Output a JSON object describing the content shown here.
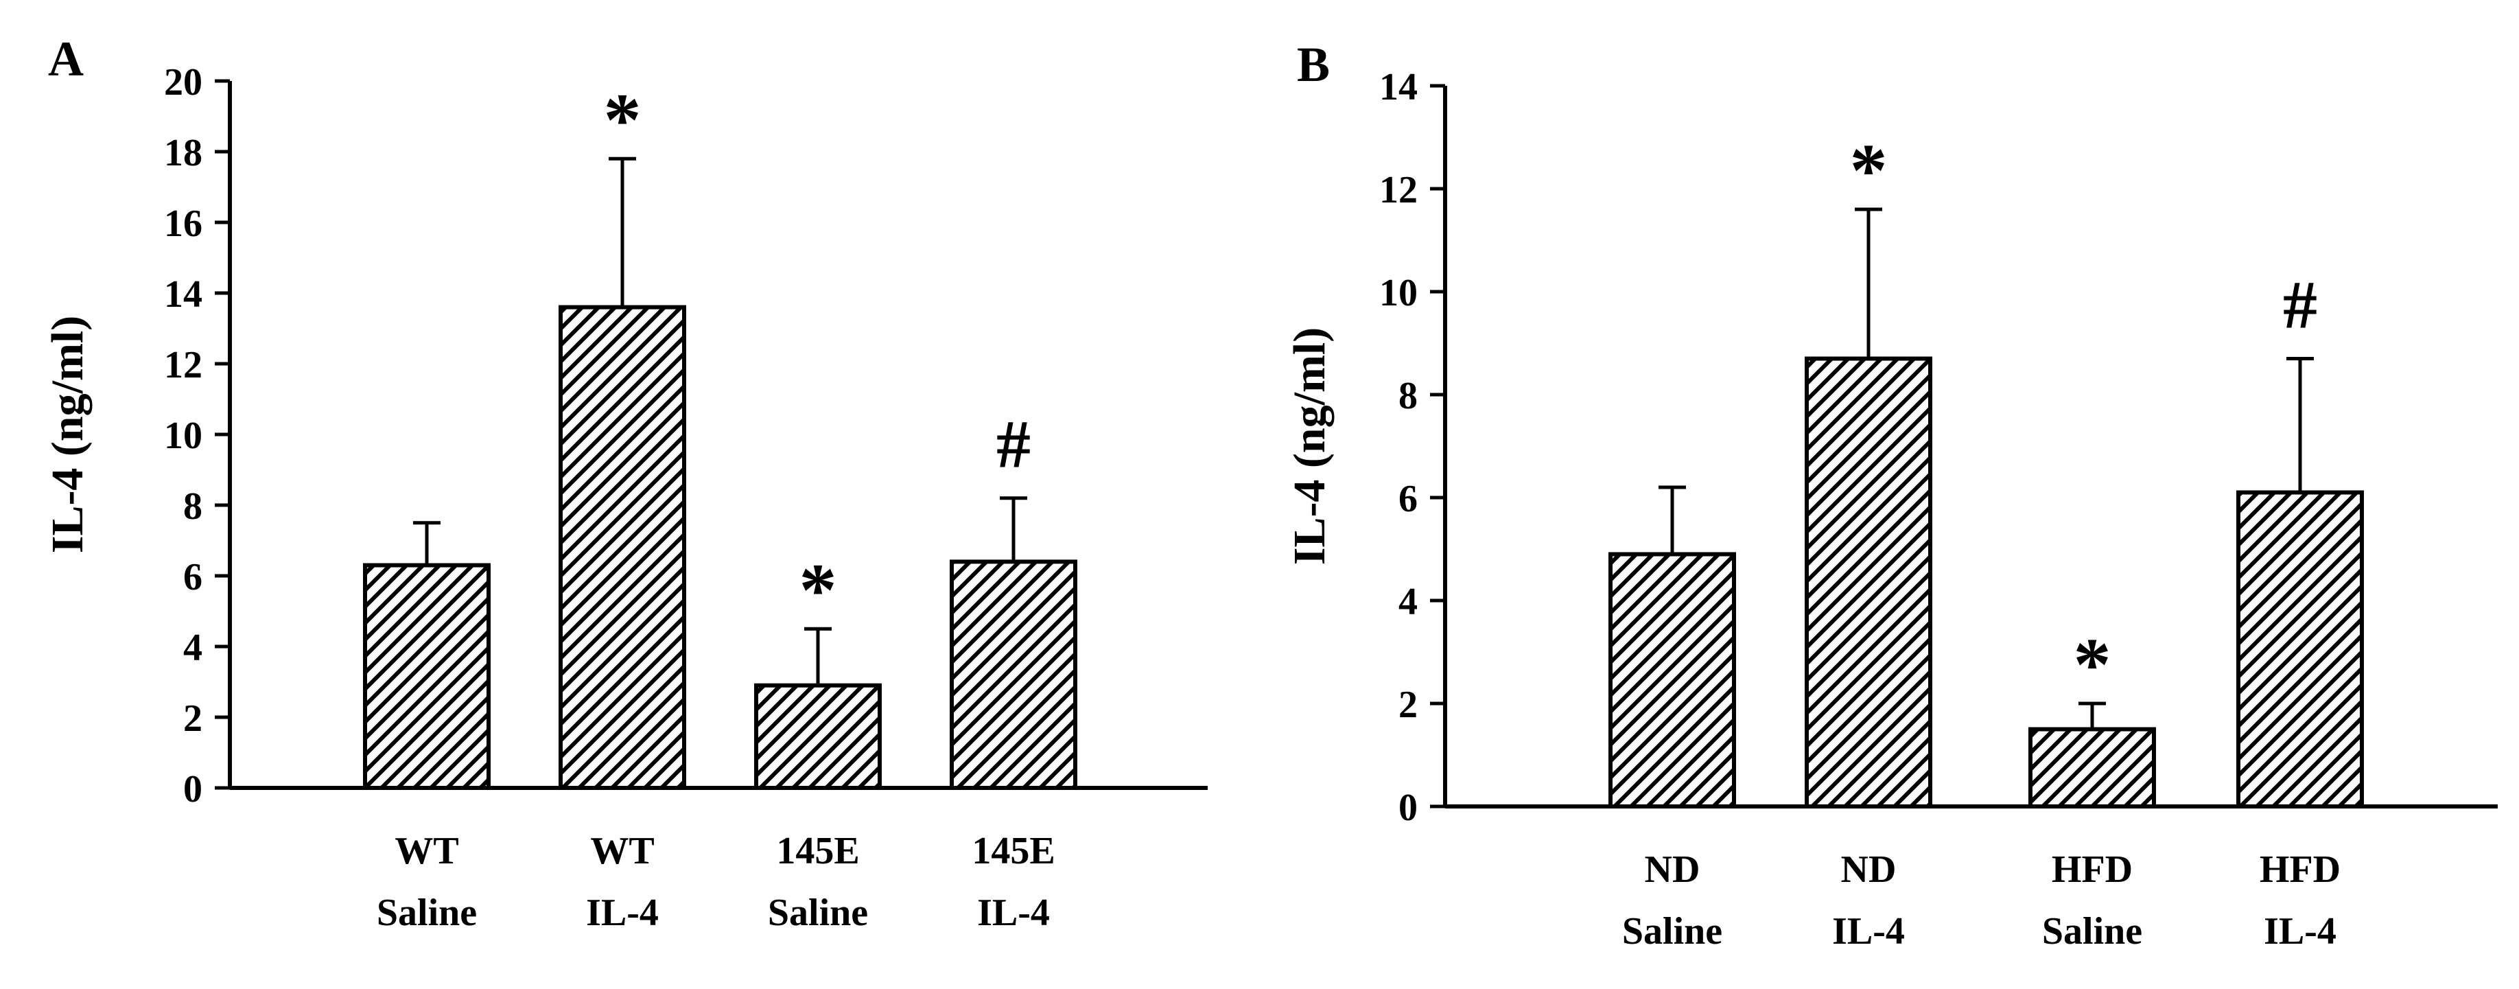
{
  "chart_data": [
    {
      "panel_label": "A",
      "type": "bar",
      "categories": [
        [
          "WT",
          "Saline"
        ],
        [
          "WT",
          "IL-4"
        ],
        [
          "145E",
          "Saline"
        ],
        [
          "145E",
          "IL-4"
        ]
      ],
      "values": [
        6.3,
        13.6,
        2.9,
        6.4
      ],
      "errors": [
        1.2,
        4.2,
        1.6,
        1.8
      ],
      "annotations": [
        "",
        "*",
        "*",
        "#"
      ],
      "ylabel": "IL-4 (ng/ml)",
      "ylim": [
        0,
        20
      ],
      "yticks": [
        0,
        2,
        4,
        6,
        8,
        10,
        12,
        14,
        16,
        18,
        20
      ],
      "bar_fill": "diagonal-hatch",
      "grid": false
    },
    {
      "panel_label": "B",
      "type": "bar",
      "categories": [
        [
          "ND",
          "Saline"
        ],
        [
          "ND",
          "IL-4"
        ],
        [
          "HFD",
          "Saline"
        ],
        [
          "HFD",
          "IL-4"
        ]
      ],
      "values": [
        4.9,
        8.7,
        1.5,
        6.1
      ],
      "errors": [
        1.3,
        2.9,
        0.5,
        2.6
      ],
      "annotations": [
        "",
        "*",
        "*",
        "#"
      ],
      "ylabel": "IL-4 (ng/ml)",
      "ylim": [
        0,
        14
      ],
      "yticks": [
        0,
        2,
        4,
        6,
        8,
        10,
        12,
        14
      ],
      "bar_fill": "diagonal-hatch",
      "grid": false
    }
  ],
  "colors": {
    "ink": "#000000",
    "background": "#ffffff"
  }
}
